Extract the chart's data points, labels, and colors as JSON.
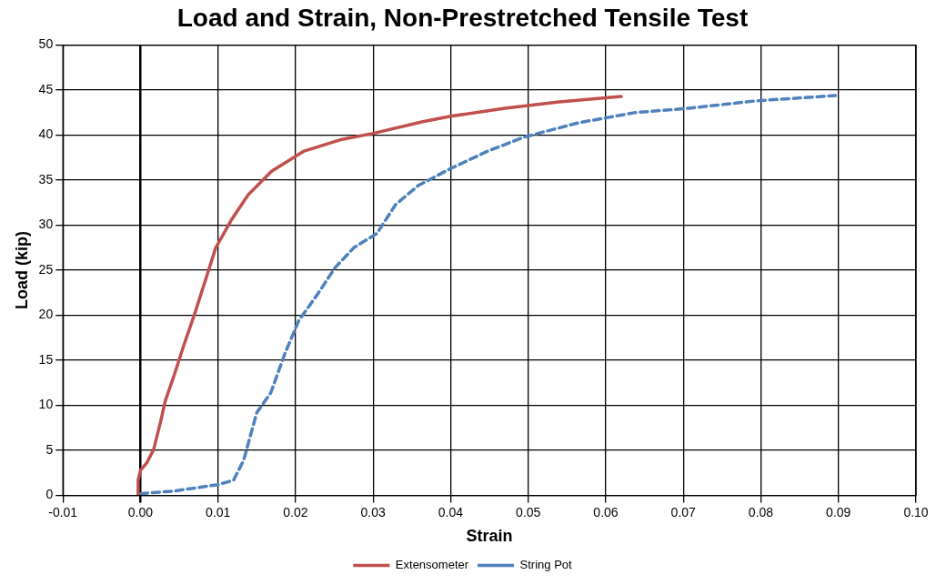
{
  "chart_data": {
    "type": "line",
    "title": "Load and Strain, Non-Prestretched Tensile Test",
    "xlabel": "Strain",
    "ylabel": "Load (kip)",
    "xlim": [
      -0.01,
      0.1
    ],
    "xticks": [
      {
        "value": -0.01,
        "label": "-0.01"
      },
      {
        "value": 0,
        "label": "0.00"
      },
      {
        "value": 0.01,
        "label": "0.01"
      },
      {
        "value": 0.02,
        "label": "0.02"
      },
      {
        "value": 0.03,
        "label": "0.03"
      },
      {
        "value": 0.04,
        "label": "0.04"
      },
      {
        "value": 0.05,
        "label": "0.05"
      },
      {
        "value": 0.06,
        "label": "0.06"
      },
      {
        "value": 0.07,
        "label": "0.07"
      },
      {
        "value": 0.08,
        "label": "0.08"
      },
      {
        "value": 0.09,
        "label": "0.09"
      },
      {
        "value": 0.1,
        "label": "0.10"
      }
    ],
    "ylim": [
      0,
      50
    ],
    "yticks": [
      0,
      5,
      10,
      15,
      20,
      25,
      30,
      35,
      40,
      45,
      50
    ],
    "grid": true,
    "legend": "bottom",
    "marker": "none",
    "series": [
      {
        "name": "Extensometer",
        "color": "#c0504d",
        "line_style": "solid",
        "x": [
          -0.0003,
          -0.0003,
          0,
          0.0008,
          0.0017,
          0.0026,
          0.0032,
          0.0044,
          0.0056,
          0.007,
          0.0083,
          0.0097,
          0.0118,
          0.0139,
          0.0169,
          0.021,
          0.0258,
          0.03,
          0.0364,
          0.04,
          0.047,
          0.054,
          0.062
        ],
        "values": [
          0,
          1.7,
          2.8,
          3.6,
          5.1,
          8.2,
          10.5,
          13.5,
          16.7,
          20.2,
          23.7,
          27.5,
          30.7,
          33.4,
          36,
          38.2,
          39.5,
          40.2,
          41.5,
          42.1,
          43,
          43.7,
          44.3
        ]
      },
      {
        "name": "String Pot",
        "color": "#4f81bd",
        "line_style": "dashed",
        "x": [
          0,
          0.0044,
          0.01,
          0.012,
          0.0133,
          0.015,
          0.0168,
          0.0186,
          0.0204,
          0.0228,
          0.0251,
          0.0275,
          0.0305,
          0.0329,
          0.0358,
          0.04,
          0.0447,
          0.0495,
          0.0566,
          0.0637,
          0.0708,
          0.0792,
          0.0896
        ],
        "values": [
          0.2,
          0.5,
          1.2,
          1.7,
          3.9,
          9.2,
          11.4,
          15.7,
          19.4,
          22.3,
          25.3,
          27.5,
          29.1,
          32.3,
          34.4,
          36.3,
          38.2,
          39.8,
          41.4,
          42.5,
          43,
          43.8,
          44.4
        ]
      }
    ]
  }
}
